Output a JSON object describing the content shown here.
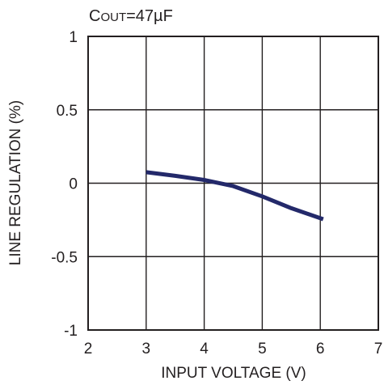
{
  "chart_data": {
    "type": "line",
    "title": "",
    "annotation": {
      "prefix": "C",
      "subscript": "OUT",
      "suffix": "=47µF"
    },
    "xlabel": "INPUT VOLTAGE (V)",
    "ylabel": "LINE REGULATION (%)",
    "xlim": [
      2,
      7
    ],
    "ylim": [
      -1,
      1
    ],
    "x_ticks": [
      2,
      3,
      4,
      5,
      6,
      7
    ],
    "x_tick_labels": [
      "2",
      "3",
      "4",
      "5",
      "6",
      "7"
    ],
    "y_ticks": [
      1,
      0.5,
      0,
      -0.5,
      -1
    ],
    "y_tick_labels": [
      "1",
      "0.5",
      "0",
      "-0.5",
      "-1"
    ],
    "grid": true,
    "legend": "none",
    "series": [
      {
        "color": "#23296a",
        "x": [
          3.0,
          3.5,
          4.0,
          4.5,
          5.0,
          5.5,
          6.05
        ],
        "y": [
          0.075,
          0.05,
          0.022,
          -0.02,
          -0.09,
          -0.17,
          -0.245
        ]
      }
    ]
  }
}
